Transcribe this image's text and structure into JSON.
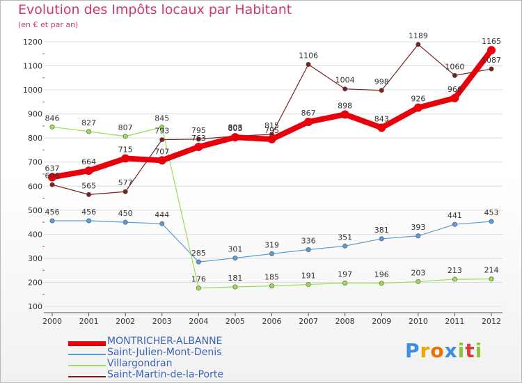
{
  "chart_data": {
    "type": "line",
    "title": "Evolution des Impôts locaux par Habitant",
    "subtitle": "(en € et par an)",
    "xlabel": "",
    "ylabel": "",
    "categories": [
      "2000",
      "2001",
      "2002",
      "2003",
      "2004",
      "2005",
      "2006",
      "2007",
      "2008",
      "2009",
      "2010",
      "2011",
      "2012"
    ],
    "ylim": [
      100,
      1200
    ],
    "yticks": [
      100,
      200,
      300,
      400,
      500,
      600,
      700,
      800,
      900,
      1000,
      1100,
      1200
    ],
    "grid": "horizontal",
    "series": [
      {
        "name": "MONTRICHER-ALBANNE",
        "color": "#e8000b",
        "values": [
          637,
          664,
          715,
          707,
          763,
          803,
          795,
          867,
          898,
          843,
          926,
          966,
          1165
        ],
        "labels": [
          "637",
          "664",
          "715",
          "707",
          "763",
          "803",
          "795",
          "867",
          "898",
          "843",
          "926",
          "966",
          "1165"
        ]
      },
      {
        "name": "Saint-Julien-Mont-Denis",
        "color": "#5b9bd5",
        "values": [
          456,
          456,
          450,
          444,
          285,
          301,
          319,
          336,
          351,
          381,
          393,
          441,
          453
        ],
        "labels": [
          "456",
          "456",
          "450",
          "444",
          "285",
          "301",
          "319",
          "336",
          "351",
          "381",
          "393",
          "441",
          "453"
        ]
      },
      {
        "name": "Villargondran",
        "color": "#99dd55",
        "values": [
          846,
          827,
          807,
          845,
          176,
          181,
          185,
          191,
          197,
          196,
          203,
          213,
          214
        ],
        "labels": [
          "846",
          "827",
          "807",
          "845",
          "176",
          "181",
          "185",
          "191",
          "197",
          "196",
          "203",
          "213",
          "214"
        ]
      },
      {
        "name": "Saint-Martin-de-la-Porte",
        "color": "#7a1f1f",
        "values": [
          606,
          565,
          577,
          793,
          795,
          808,
          815,
          1106,
          1004,
          998,
          1189,
          1060,
          1087
        ],
        "labels": [
          "606",
          "565",
          "577",
          "793",
          "795",
          "808",
          "815",
          "1106",
          "1004",
          "998",
          "1189",
          "1060",
          "1087"
        ]
      }
    ]
  },
  "logo": {
    "letters": [
      "P",
      "r",
      "o",
      "x",
      "i",
      "t",
      "i"
    ],
    "colors": [
      "#3a8ee0",
      "#f5a000",
      "#f07000",
      "#3a8ee0",
      "#8ac63c",
      "#e03a3a",
      "#8ac63c"
    ]
  }
}
